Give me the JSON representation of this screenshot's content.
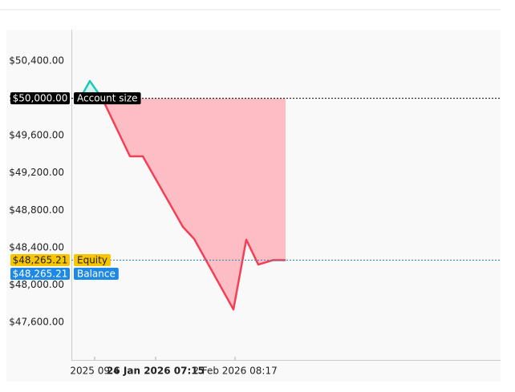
{
  "chart_data": {
    "type": "line",
    "x": [
      11,
      23,
      39,
      73,
      89,
      139,
      153,
      202,
      218,
      233,
      251,
      267
    ],
    "xlim": [
      0,
      534
    ],
    "xticks": [
      {
        "value": 29,
        "label": "2025 09:4"
      },
      {
        "value": 105,
        "label": "26 Jan 2026 07:15"
      },
      {
        "value": 204,
        "label": "2 Feb 2026 08:17"
      }
    ],
    "series": [
      {
        "values": [
          50000,
          50185,
          49988,
          49378,
          49378,
          48622,
          48493,
          47737,
          48485,
          48218,
          48265.21,
          48265.21
        ],
        "color_above": "#1ec8b8",
        "color_below": "#f43f55",
        "fill_below": "#fcbdc5",
        "fill_above": "#d4f4f0"
      }
    ],
    "ylim": [
      47196,
      50735
    ],
    "yticks": [
      {
        "value": 47600,
        "label": "$47,600.00"
      },
      {
        "value": 48000,
        "label": "$48,000.00"
      },
      {
        "value": 48400,
        "label": "$48,400.00"
      },
      {
        "value": 48800,
        "label": "$48,800.00"
      },
      {
        "value": 49200,
        "label": "$49,200.00"
      },
      {
        "value": 49600,
        "label": "$49,600.00"
      },
      {
        "value": 50000,
        "label": "$50,000.00"
      },
      {
        "value": 50400,
        "label": "$50,400.00"
      }
    ],
    "levels": [
      {
        "label": "Account size",
        "value": 50000,
        "value_label": "$50,000.00",
        "color": "#000000",
        "text_color": "#ffffff"
      },
      {
        "label": "Equity",
        "value": 48265.21,
        "value_label": "$48,265.21",
        "color": "#f7c600",
        "text_color": "#222222"
      },
      {
        "label": "Balance",
        "value": 48265.21,
        "value_label": "$48,265.21",
        "color": "#1e88e5",
        "text_color": "#ffffff"
      }
    ]
  }
}
